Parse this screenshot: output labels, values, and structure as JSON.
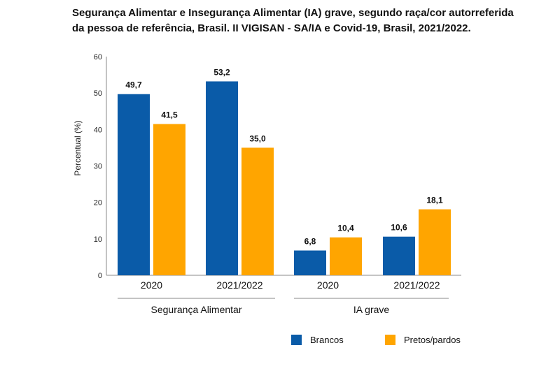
{
  "chart_data": {
    "type": "bar",
    "title": "Segurança Alimentar e Insegurança Alimentar (IA) grave, segundo raça/cor autorreferida\nda pessoa de referência, Brasil. II VIGISAN - SA/IA e Covid-19, Brasil, 2021/2022.",
    "ylabel": "Percentual (%)",
    "ylim": [
      0,
      60
    ],
    "yticks": [
      "0",
      "10",
      "20",
      "30",
      "40",
      "50",
      "60"
    ],
    "grid": false,
    "legend_position": "bottom-right",
    "groups": [
      {
        "label": "Segurança Alimentar",
        "categories": [
          "2020",
          "2021/2022"
        ]
      },
      {
        "label": "IA grave",
        "categories": [
          "2020",
          "2021/2022"
        ]
      }
    ],
    "categories": [
      "2020",
      "2021/2022",
      "2020",
      "2021/2022"
    ],
    "series": [
      {
        "name": "Brancos",
        "color": "#0a5ba8",
        "values": [
          49.7,
          53.2,
          6.8,
          10.6
        ],
        "labels": [
          "49,7",
          "53,2",
          "6,8",
          "10,6"
        ]
      },
      {
        "name": "Pretos/pardos",
        "color": "#ffa500",
        "values": [
          41.5,
          35.0,
          10.4,
          18.1
        ],
        "labels": [
          "41,5",
          "35,0",
          "10,4",
          "18,1"
        ]
      }
    ]
  }
}
